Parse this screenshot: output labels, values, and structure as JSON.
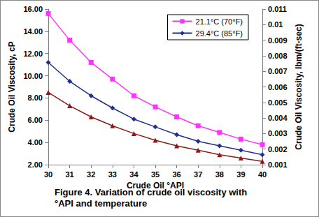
{
  "chart_data": {
    "type": "line",
    "title": "Figure 4. Variation of crude oil viscosity with °API and temperature",
    "x_label": "Crude Oil °API",
    "y_label": "Crude Oil Viscosity, cP",
    "y2_label": "Crude Oil Viscosity, lbm/(ft-sec)",
    "x": [
      30,
      31,
      32,
      33,
      34,
      35,
      36,
      37,
      38,
      39,
      40
    ],
    "series": [
      {
        "name": "21.1°C (70°F)",
        "color": "#ff33ff",
        "marker": "square",
        "values": [
          15.6,
          13.2,
          11.2,
          9.7,
          8.2,
          7.2,
          6.3,
          5.5,
          4.9,
          4.3,
          3.8
        ]
      },
      {
        "name": "29.4°C (85°F)",
        "color": "#1f2f8a",
        "marker": "diamond",
        "values": [
          11.2,
          9.5,
          8.2,
          7.1,
          6.1,
          5.4,
          4.7,
          4.1,
          3.7,
          3.3,
          2.9
        ]
      },
      {
        "color": "#8b1a1a",
        "marker": "triangle",
        "values": [
          8.5,
          7.3,
          6.3,
          5.5,
          4.8,
          4.2,
          3.7,
          3.3,
          2.9,
          2.6,
          2.3
        ]
      }
    ],
    "xlim": [
      30,
      40
    ],
    "xticks": [
      30,
      31,
      32,
      33,
      34,
      35,
      36,
      37,
      38,
      39,
      40
    ],
    "ylim": [
      2,
      16
    ],
    "yticks": [
      {
        "value": 2,
        "label": "2.00"
      },
      {
        "value": 4,
        "label": "4.00"
      },
      {
        "value": 6,
        "label": "6.00"
      },
      {
        "value": 8,
        "label": "8.00"
      },
      {
        "value": 10,
        "label": "10.00"
      },
      {
        "value": 12,
        "label": "12.00"
      },
      {
        "value": 14,
        "label": "14.00"
      },
      {
        "value": 16,
        "label": "16.00"
      }
    ],
    "y2lim": [
      0.001,
      0.011
    ],
    "y2ticks": [
      0.001,
      0.002,
      0.003,
      0.004,
      0.005,
      0.006,
      0.007,
      0.008,
      0.009,
      0.01,
      0.011
    ],
    "grid": false,
    "legend": "upper right"
  }
}
